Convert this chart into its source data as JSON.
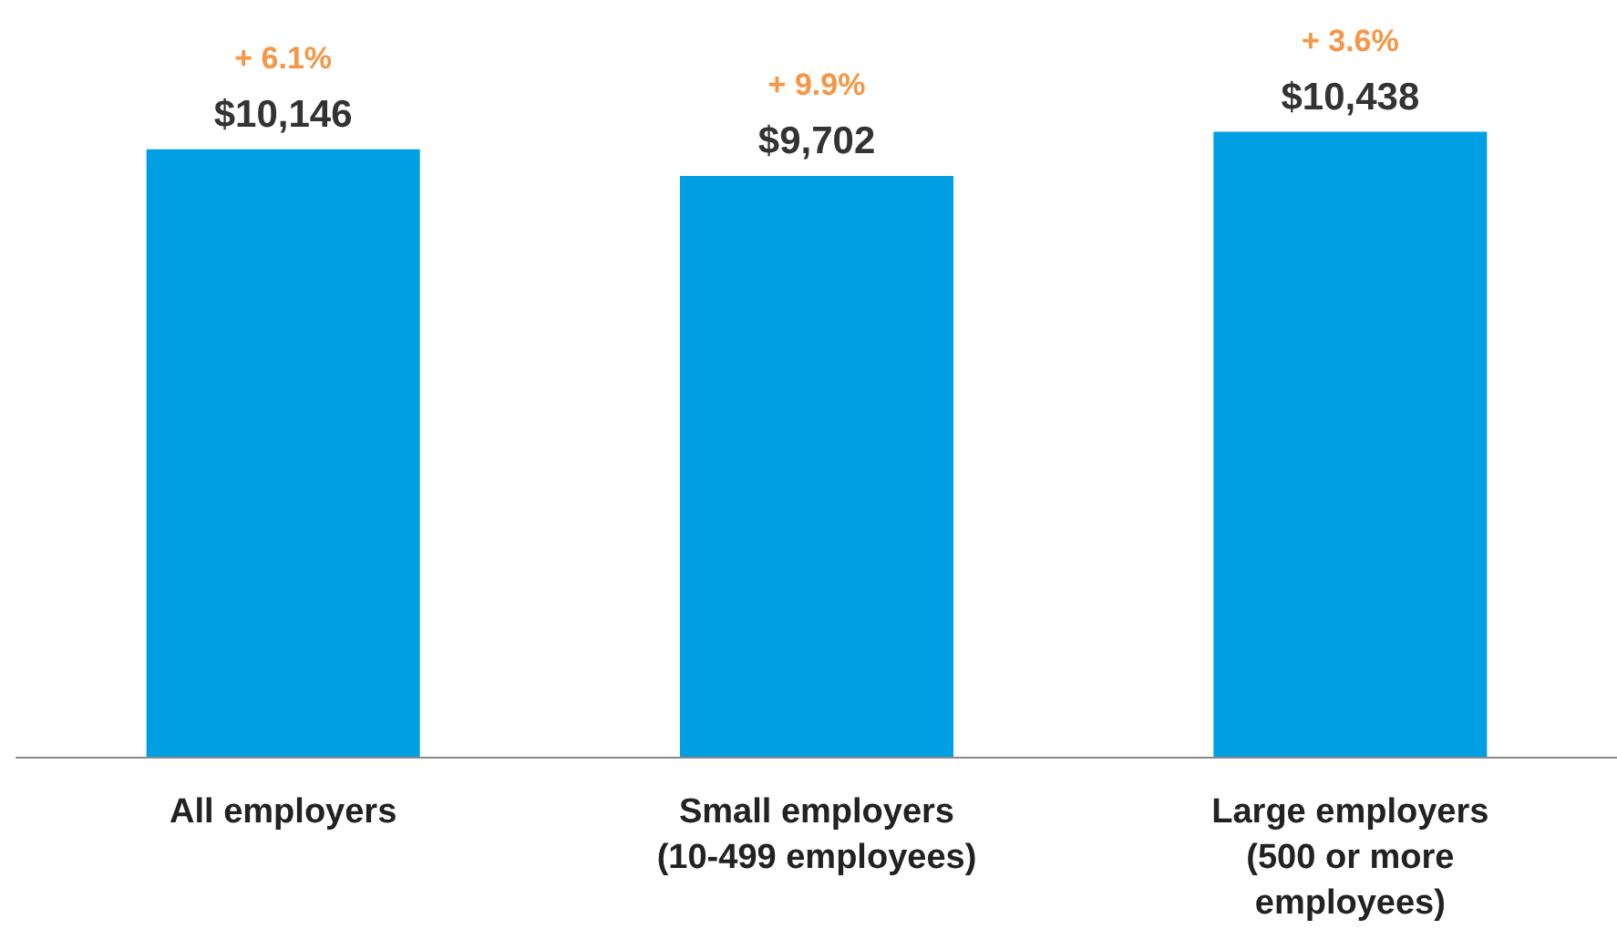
{
  "chart_data": {
    "type": "bar",
    "categories": [
      "All employers",
      "Small employers\n(10-499 employees)",
      "Large employers\n(500 or more\nemployees)"
    ],
    "values": [
      10146,
      9702,
      10438
    ],
    "value_labels": [
      "$10,146",
      "$9,702",
      "$10,438"
    ],
    "color": "#009fe3",
    "annotations": [
      "+ 6.1%",
      "+ 9.9%",
      "+ 3.6%"
    ]
  }
}
